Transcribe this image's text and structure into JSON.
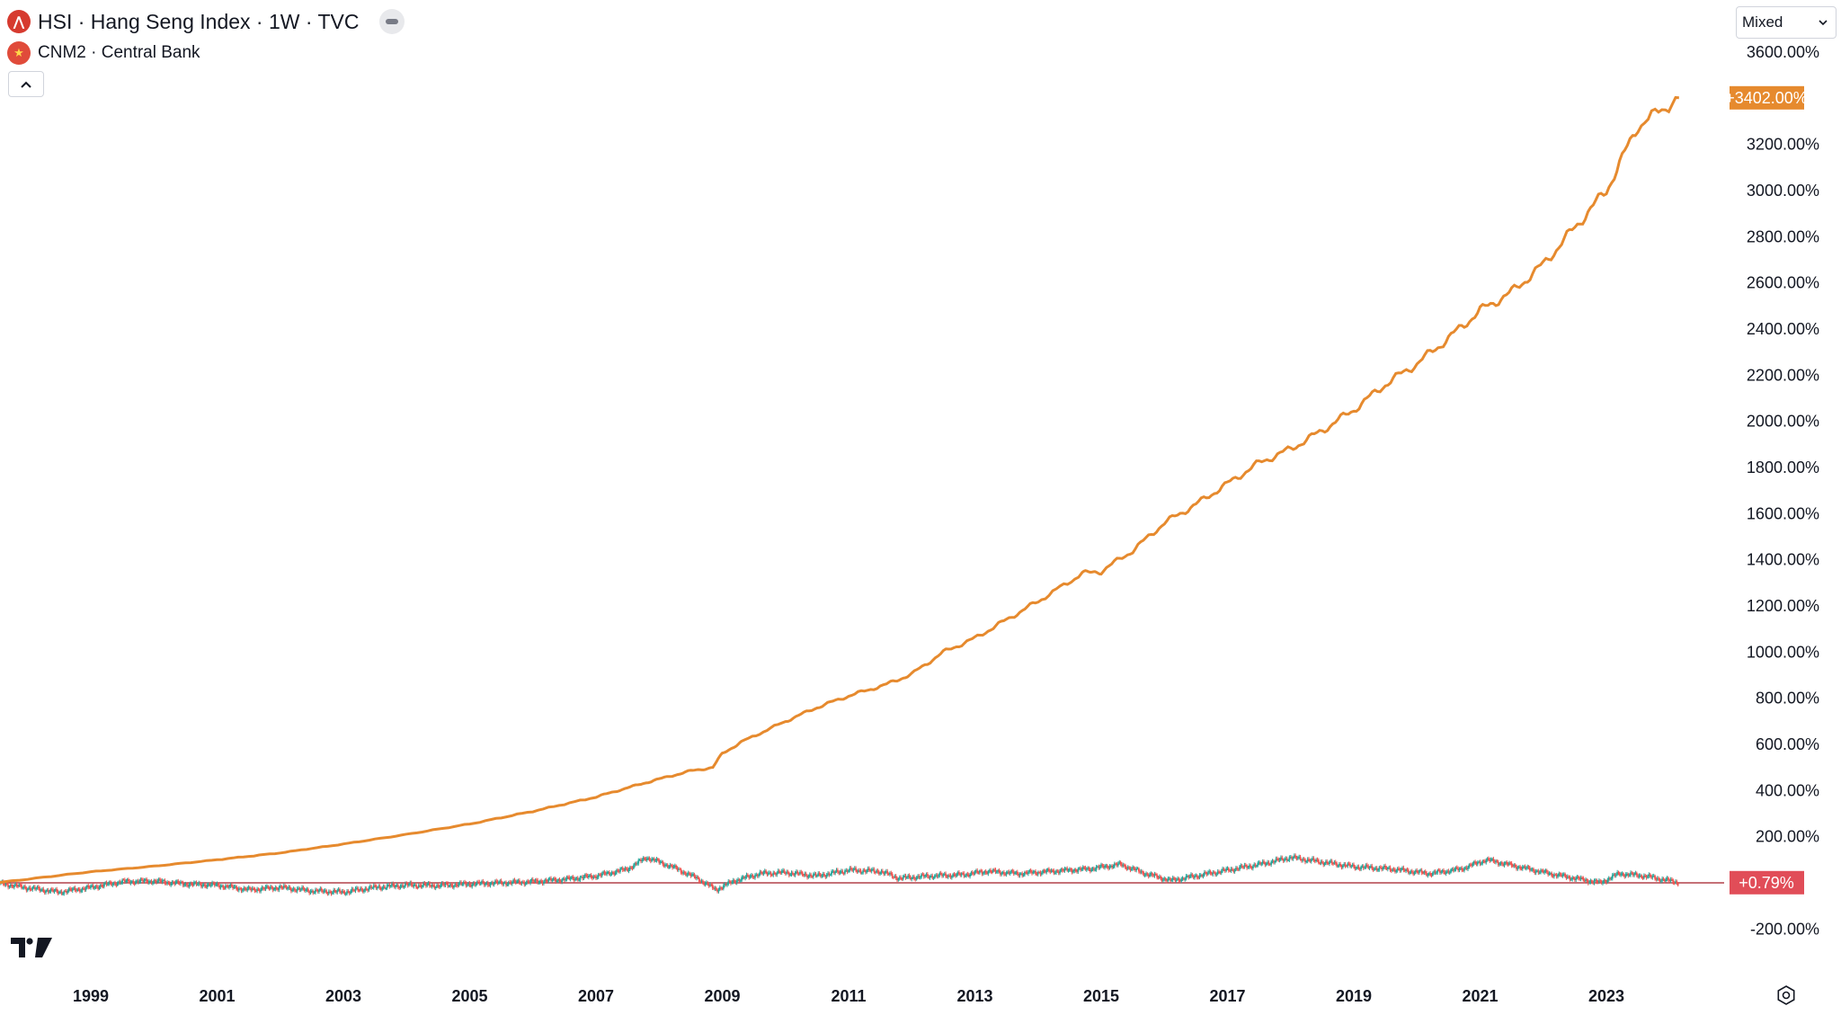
{
  "header": {
    "main_symbol": "HSI · Hang Seng Index · 1W · TVC",
    "main_logo_glyph": "⋀",
    "compare_symbol": "CNM2 · Central Bank",
    "compare_logo_glyph": "★"
  },
  "toolbar": {
    "scale_mode": "Mixed"
  },
  "colors": {
    "cnm2_line": "#e68a2e",
    "candle_up": "#26a69a",
    "candle_down": "#ef5350",
    "baseline": "#b2424a",
    "badge_cnm2": "#e68a2e",
    "badge_hsi": "#e14d58"
  },
  "chart_data": [
    {
      "type": "line",
      "series_name": "CNM2 · Central Bank",
      "y_unit": "% change",
      "x": [
        1997.5,
        1999,
        2000,
        2001,
        2002,
        2003,
        2004,
        2005,
        2006,
        2007,
        2007.5,
        2008,
        2008.5,
        2008.85,
        2009,
        2009.3,
        2010,
        2010.5,
        2011,
        2011.6,
        2012,
        2012.5,
        2013,
        2013.5,
        2014,
        2014.7,
        2015,
        2015.5,
        2016,
        2016.5,
        2017,
        2017.5,
        2018,
        2018.5,
        2019,
        2019.5,
        2020,
        2020.5,
        2021,
        2021.5,
        2022,
        2022.5,
        2023,
        2023.5,
        2024.15
      ],
      "y": [
        0,
        48,
        72,
        100,
        130,
        168,
        210,
        255,
        310,
        372,
        412,
        450,
        485,
        500,
        560,
        610,
        700,
        760,
        810,
        860,
        905,
        1000,
        1060,
        1140,
        1220,
        1340,
        1350,
        1440,
        1560,
        1640,
        1730,
        1820,
        1880,
        1960,
        2050,
        2160,
        2250,
        2360,
        2480,
        2560,
        2680,
        2840,
        3000,
        3280,
        3402
      ]
    },
    {
      "type": "candlestick",
      "series_name": "HSI · Hang Seng Index · 1W · TVC",
      "y_unit": "% change",
      "x": [
        1997.5,
        1998.0,
        1998.5,
        1999.0,
        1999.5,
        2000.0,
        2000.5,
        2001.0,
        2001.5,
        2002.0,
        2002.5,
        2003.0,
        2003.5,
        2004.0,
        2004.5,
        2005.0,
        2005.5,
        2006.0,
        2006.5,
        2007.0,
        2007.5,
        2007.8,
        2008.2,
        2008.6,
        2008.9,
        2009.2,
        2009.6,
        2010.0,
        2010.5,
        2011.0,
        2011.5,
        2011.8,
        2012.3,
        2012.8,
        2013.2,
        2013.7,
        2014.2,
        2014.8,
        2015.3,
        2015.7,
        2016.1,
        2016.6,
        2017.1,
        2017.6,
        2018.0,
        2018.5,
        2019.0,
        2019.6,
        2020.2,
        2020.7,
        2021.1,
        2021.6,
        2022.1,
        2022.5,
        2022.9,
        2023.2,
        2023.6,
        2024.15
      ],
      "y": [
        0,
        -22,
        -40,
        -20,
        5,
        8,
        -5,
        -10,
        -30,
        -20,
        -35,
        -40,
        -20,
        -10,
        -12,
        -5,
        0,
        5,
        15,
        30,
        60,
        110,
        70,
        20,
        -30,
        10,
        40,
        45,
        30,
        55,
        50,
        20,
        30,
        35,
        50,
        40,
        50,
        60,
        80,
        40,
        10,
        35,
        60,
        85,
        110,
        90,
        70,
        60,
        40,
        60,
        100,
        70,
        40,
        20,
        0,
        40,
        30,
        1
      ]
    }
  ],
  "y_axis": {
    "range": [
      -300,
      3650
    ],
    "ticks": [
      "3600.00%",
      "3200.00%",
      "3000.00%",
      "2800.00%",
      "2600.00%",
      "2400.00%",
      "2200.00%",
      "2000.00%",
      "1800.00%",
      "1600.00%",
      "1400.00%",
      "1200.00%",
      "1000.00%",
      "800.00%",
      "600.00%",
      "400.00%",
      "200.00%",
      "-200.00%"
    ],
    "tick_values": [
      3600,
      3200,
      3000,
      2800,
      2600,
      2400,
      2200,
      2000,
      1800,
      1600,
      1400,
      1200,
      1000,
      800,
      600,
      400,
      200,
      -200
    ]
  },
  "x_axis": {
    "range": [
      1997.75,
      2025.9
    ],
    "ticks": [
      "1999",
      "2001",
      "2003",
      "2005",
      "2007",
      "2009",
      "2011",
      "2013",
      "2015",
      "2017",
      "2019",
      "2021",
      "2023"
    ],
    "tick_values": [
      1999.0,
      2001.0,
      2003.0,
      2005.0,
      2007.0,
      2009.0,
      2011.0,
      2013.0,
      2015.0,
      2017.0,
      2019.0,
      2021.0,
      2023.0
    ]
  },
  "badges": {
    "cnm2_value": 3402,
    "cnm2_label": "+3402.00%",
    "hsi_value": 0.79,
    "hsi_label": "+0.79%"
  }
}
